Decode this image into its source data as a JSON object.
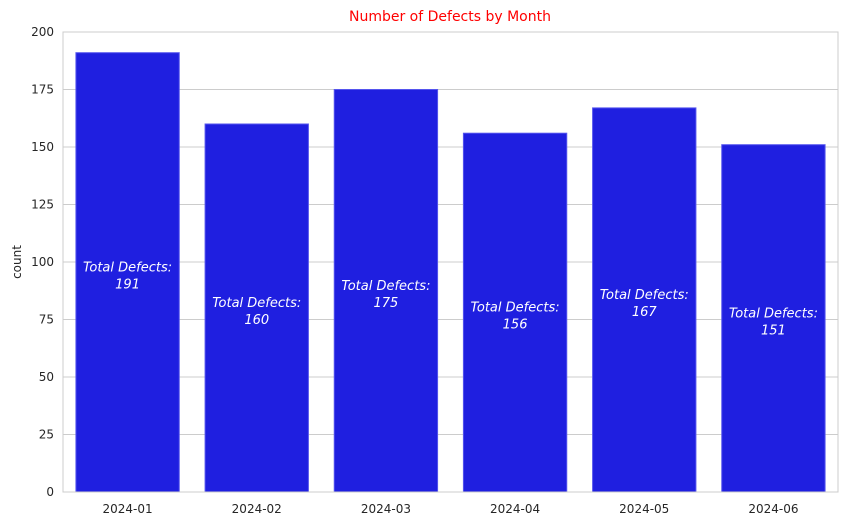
{
  "chart_data": {
    "type": "bar",
    "title": "Number of Defects by Month",
    "xlabel": "",
    "ylabel": "count",
    "categories": [
      "2024-01",
      "2024-02",
      "2024-03",
      "2024-04",
      "2024-05",
      "2024-06"
    ],
    "values": [
      191,
      160,
      175,
      156,
      167,
      151
    ],
    "bar_label_prefix": "Total Defects:",
    "ylim": [
      0,
      200
    ],
    "yticks": [
      0,
      25,
      50,
      75,
      100,
      125,
      150,
      175,
      200
    ],
    "grid": true,
    "legend": "none",
    "colors": {
      "bar": "#1f1fe0",
      "bar_edge": "#5555ee",
      "title": "#ff0000",
      "grid": "#cccccc",
      "bar_label": "#ffffff"
    }
  }
}
